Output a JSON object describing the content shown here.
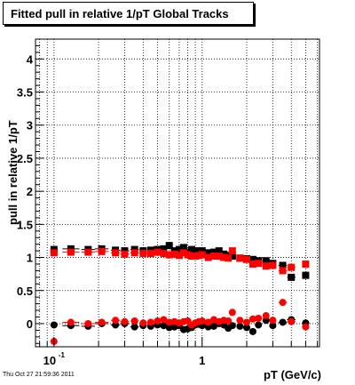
{
  "title": "Fitted pull in relative 1/pT  Global Tracks",
  "footer": "Thu Oct 27 21:59:36 2011",
  "chart_data": {
    "type": "scatter",
    "title": "Fitted pull in relative 1/pT  Global Tracks",
    "xlabel": "pT (GeV/c)",
    "ylabel": "pull in relative 1/pT",
    "xscale": "log",
    "xlim": [
      0.075,
      6.2
    ],
    "ylim": [
      -0.35,
      4.3
    ],
    "grid": true,
    "x_tick_labels": [
      {
        "x": 0.1,
        "label": "10",
        "sup": "-1"
      },
      {
        "x": 1,
        "label": "1",
        "sup": ""
      }
    ],
    "y_ticks": [
      0,
      0.5,
      1,
      1.5,
      2,
      2.5,
      3,
      3.5,
      4
    ],
    "y_tick_labels": [
      "0",
      "0.5",
      "1",
      "1.5",
      "2",
      "2.5",
      "3",
      "3.5",
      "4"
    ],
    "colors": {
      "series_black": "#000000",
      "series_red": "#ff0000"
    },
    "series": [
      {
        "color": "#000000",
        "marker": "square",
        "x": [
          0.1,
          0.13,
          0.17,
          0.21,
          0.26,
          0.3,
          0.35,
          0.4,
          0.45,
          0.5,
          0.55,
          0.6,
          0.65,
          0.7,
          0.75,
          0.8,
          0.85,
          0.9,
          0.95,
          1.0,
          1.1,
          1.2,
          1.3,
          1.4,
          1.5,
          1.6,
          1.8,
          2.0,
          2.2,
          2.4,
          2.7,
          3.0,
          3.5,
          4.0,
          5.0
        ],
        "y": [
          1.12,
          1.13,
          1.12,
          1.13,
          1.11,
          1.1,
          1.12,
          1.1,
          1.11,
          1.12,
          1.13,
          1.18,
          1.1,
          1.12,
          1.15,
          1.08,
          1.12,
          1.1,
          1.09,
          1.1,
          1.07,
          1.08,
          1.1,
          1.05,
          1.03,
          1.02,
          0.99,
          0.98,
          0.97,
          0.95,
          0.95,
          0.91,
          0.88,
          0.7,
          0.73
        ]
      },
      {
        "color": "#ff0000",
        "marker": "square",
        "x": [
          0.1,
          0.13,
          0.17,
          0.21,
          0.26,
          0.3,
          0.35,
          0.4,
          0.45,
          0.5,
          0.55,
          0.6,
          0.65,
          0.7,
          0.75,
          0.8,
          0.85,
          0.9,
          0.95,
          1.0,
          1.1,
          1.2,
          1.3,
          1.4,
          1.5,
          1.6,
          1.8,
          2.0,
          2.2,
          2.4,
          2.7,
          3.0,
          3.5,
          4.0,
          5.0
        ],
        "y": [
          1.07,
          1.08,
          1.08,
          1.09,
          1.07,
          1.05,
          1.07,
          1.06,
          1.06,
          1.08,
          1.06,
          1.04,
          1.05,
          1.03,
          1.07,
          1.04,
          1.02,
          1.02,
          1.03,
          1.04,
          1.0,
          1.02,
          1.02,
          1.0,
          0.99,
          1.1,
          0.99,
          0.97,
          0.9,
          0.91,
          0.87,
          0.88,
          0.8,
          0.85,
          0.9
        ]
      },
      {
        "color": "#000000",
        "marker": "circle",
        "x": [
          0.1,
          0.13,
          0.17,
          0.21,
          0.26,
          0.3,
          0.35,
          0.4,
          0.45,
          0.5,
          0.55,
          0.6,
          0.65,
          0.7,
          0.75,
          0.8,
          0.85,
          0.9,
          0.95,
          1.0,
          1.1,
          1.2,
          1.3,
          1.4,
          1.5,
          1.6,
          1.8,
          2.0,
          2.2,
          2.4,
          2.7,
          3.0,
          3.5,
          4.0,
          5.0
        ],
        "y": [
          -0.02,
          -0.03,
          -0.04,
          0.0,
          -0.02,
          0.0,
          -0.05,
          -0.03,
          -0.04,
          -0.02,
          -0.03,
          -0.06,
          -0.05,
          -0.03,
          -0.09,
          -0.08,
          -0.06,
          -0.02,
          -0.01,
          -0.03,
          -0.05,
          -0.04,
          0.0,
          -0.02,
          -0.07,
          -0.03,
          -0.04,
          -0.06,
          -0.12,
          -0.02,
          0.05,
          -0.03,
          0.02,
          0.06,
          0.01
        ]
      },
      {
        "color": "#ff0000",
        "marker": "circle",
        "x": [
          0.1,
          0.13,
          0.17,
          0.21,
          0.26,
          0.3,
          0.35,
          0.4,
          0.45,
          0.5,
          0.55,
          0.6,
          0.65,
          0.7,
          0.75,
          0.8,
          0.85,
          0.9,
          0.95,
          1.0,
          1.1,
          1.2,
          1.3,
          1.4,
          1.5,
          1.6,
          1.8,
          2.0,
          2.2,
          2.4,
          2.7,
          3.0,
          3.5,
          4.0,
          5.0
        ],
        "y": [
          -0.27,
          0.02,
          0.0,
          0.02,
          0.05,
          0.03,
          0.04,
          0.01,
          0.02,
          0.04,
          0.06,
          0.02,
          0.03,
          0.01,
          0.03,
          0.04,
          -0.02,
          0.01,
          0.03,
          0.04,
          0.02,
          0.06,
          0.03,
          0.05,
          0.04,
          0.17,
          0.05,
          0.02,
          0.07,
          0.08,
          0.12,
          0.05,
          0.32,
          0.03,
          -0.05
        ]
      }
    ]
  }
}
